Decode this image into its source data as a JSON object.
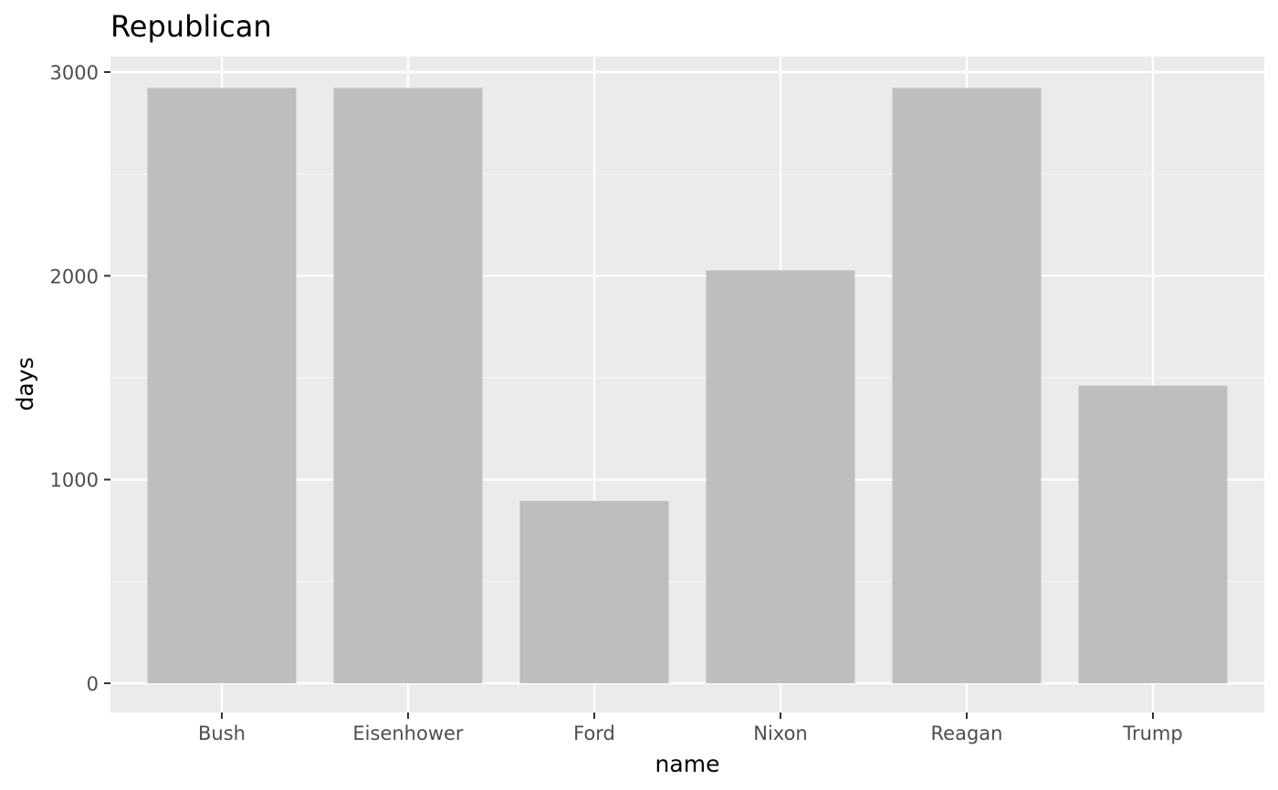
{
  "chart_data": {
    "type": "bar",
    "title": "Republican",
    "xlabel": "name",
    "ylabel": "days",
    "categories": [
      "Bush",
      "Eisenhower",
      "Ford",
      "Nixon",
      "Reagan",
      "Trump"
    ],
    "values": [
      2922,
      2922,
      895,
      2027,
      2922,
      1461
    ],
    "ylim": [
      0,
      3000
    ],
    "yticks": [
      0,
      1000,
      2000,
      3000
    ],
    "grid": true,
    "colors": {
      "panel_background": "#ebebeb",
      "grid_major": "#ffffff",
      "grid_minor": "#f5f5f5",
      "bar_fill": "#bebebe",
      "tick_mark": "#333333"
    }
  }
}
